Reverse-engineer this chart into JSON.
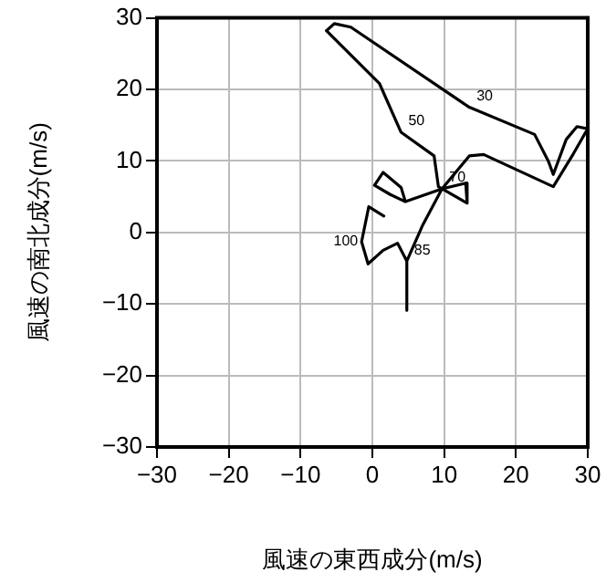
{
  "chart_data": {
    "type": "line",
    "xlabel": "風速の東西成分(m/s)",
    "ylabel": "風速の南北成分(m/s)",
    "xlim": [
      -30,
      30
    ],
    "ylim": [
      -30,
      30
    ],
    "xticks": [
      {
        "value": -30,
        "label": "−30"
      },
      {
        "value": -20,
        "label": "−20"
      },
      {
        "value": -10,
        "label": "−10"
      },
      0,
      10,
      20,
      30
    ],
    "yticks": [
      {
        "value": -30,
        "label": "−30"
      },
      {
        "value": -20,
        "label": "−20"
      },
      {
        "value": -10,
        "label": "−10"
      },
      0,
      10,
      20,
      30
    ],
    "grid": true,
    "series": [
      {
        "color": "#000000",
        "x": [
          -1.5,
          -0.5,
          1.6,
          -0.5,
          -1.5,
          -0.6,
          1.5,
          3.5,
          4.8,
          4.8,
          4.8,
          7,
          9.7,
          4.6,
          4,
          1.5,
          0.3,
          2.5,
          4.6,
          9.7,
          13,
          13.2,
          9.7,
          9.2,
          8.6,
          4,
          1,
          -6.4,
          -5.3,
          -3,
          13.5,
          22.6,
          24.5,
          25.2,
          27,
          28.5,
          30,
          28,
          25.2,
          15.5,
          13.5,
          9.7
        ],
        "values": [
          -1.3,
          3.6,
          2.3,
          3.6,
          -1.3,
          -4.4,
          -2.5,
          -1.5,
          -4,
          -10.9,
          -4,
          1,
          6.1,
          4.3,
          6.3,
          8.4,
          6.6,
          5.3,
          4.3,
          6.1,
          6.9,
          4.1,
          6.1,
          6.4,
          10.7,
          14,
          20.8,
          28.2,
          29.2,
          28.7,
          17.5,
          13.7,
          10,
          8.1,
          13,
          14.8,
          14.5,
          11,
          6.4,
          10.9,
          10.7,
          6.1
        ]
      }
    ],
    "annotations": [
      {
        "text": "100",
        "x": -1.5,
        "y": -1.3
      },
      {
        "text": "85",
        "x": 4.8,
        "y": -4
      },
      {
        "text": "70",
        "x": 9.7,
        "y": 6.1
      },
      {
        "text": "50",
        "x": 4,
        "y": 14
      },
      {
        "text": "30",
        "x": 13.5,
        "y": 17.5
      }
    ]
  }
}
